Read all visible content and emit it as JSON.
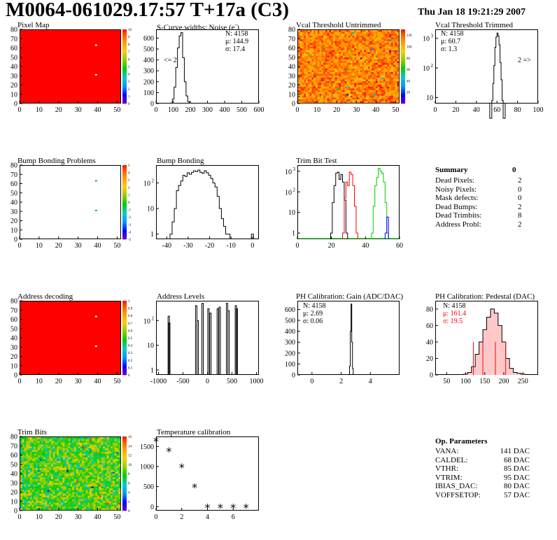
{
  "header": {
    "title": "M0064-061029.17:57 T+17a (C3)",
    "date": "Thu Jan 18 19:21:29 2007"
  },
  "colors": {
    "accent_red": "#ff0000",
    "trim_green": "#00cc00",
    "trim_blue": "#0000ff",
    "pedestal_fill": "#ffc8c8"
  },
  "pixel_map": {
    "title": "Pixel Map",
    "x_ticks": [
      "0",
      "10",
      "20",
      "30",
      "40",
      "50"
    ],
    "y_ticks": [
      "0",
      "10",
      "20",
      "30",
      "40",
      "50",
      "60",
      "70",
      "80"
    ],
    "palette_ticks": [
      "0",
      "1",
      "2",
      "3",
      "4",
      "5",
      "6",
      "7",
      "8",
      "9",
      "10"
    ]
  },
  "scurve": {
    "title": "S-Curve widths: Noise (e",
    "title_sup": "-",
    "title_tail": ")",
    "stats": [
      "N: 4158",
      "μ: 144.9",
      "σ: 17.4"
    ],
    "underflow": "<= 2",
    "x_ticks": [
      "0",
      "100",
      "200",
      "300",
      "400",
      "500",
      "600"
    ],
    "y_ticks": [
      "0",
      "100",
      "200",
      "300",
      "400",
      "500",
      "600"
    ]
  },
  "vcal_untrimmed": {
    "title": "Vcal Threshold Untrimmed",
    "x_ticks": [
      "0",
      "10",
      "20",
      "30",
      "40",
      "50"
    ],
    "y_ticks": [
      "0",
      "10",
      "20",
      "30",
      "40",
      "50",
      "60",
      "70",
      "80"
    ],
    "palette_ticks": [
      "20",
      "40",
      "60",
      "80",
      "100",
      "120"
    ]
  },
  "vcal_trimmed": {
    "title": "Vcal Threshold Trimmed",
    "stats": [
      "N: 4158",
      "μ: 60.7",
      "σ:  1.3"
    ],
    "overflow": "2 =>",
    "x_ticks": [
      "0",
      "20",
      "40",
      "60",
      "80",
      "100"
    ],
    "y_ticks": [
      "10",
      "10",
      "10"
    ],
    "y_exps": [
      "",
      "2",
      "3"
    ]
  },
  "bump_problems": {
    "title": "Bump Bonding Problems",
    "x_ticks": [
      "0",
      "10",
      "20",
      "30",
      "40",
      "50"
    ],
    "y_ticks": [
      "0",
      "10",
      "20",
      "30",
      "40",
      "50",
      "60",
      "70",
      "80"
    ],
    "palette_ticks": [
      "-5",
      "-4",
      "-3",
      "-2",
      "-1",
      "0",
      "1",
      "2",
      "3",
      "4",
      "5"
    ]
  },
  "bump_bonding": {
    "title": "Bump Bonding",
    "x_ticks": [
      "-40",
      "-30",
      "-20",
      "-10",
      "0"
    ],
    "y_ticks": [
      "1",
      "10",
      "10"
    ],
    "y_exps": [
      "",
      "",
      "2"
    ]
  },
  "trim_bit_test": {
    "title": "Trim Bit Test",
    "x_ticks": [
      "0",
      "20",
      "40",
      "60"
    ],
    "y_ticks": [
      "1",
      "10",
      "10",
      "10"
    ],
    "y_exps": [
      "",
      "",
      "2",
      "3"
    ]
  },
  "summary": {
    "title": "Summary",
    "total": "0",
    "rows": [
      {
        "label": "Dead Pixels:",
        "value": "2"
      },
      {
        "label": "Noisy Pixels:",
        "value": "0"
      },
      {
        "label": "Mask defects:",
        "value": "0"
      },
      {
        "label": "Dead Bumps:",
        "value": "2"
      },
      {
        "label": "Dead Trimbits:",
        "value": "8"
      },
      {
        "label": "Address Probl:",
        "value": "2"
      }
    ]
  },
  "address_decoding": {
    "title": "Address decoding",
    "x_ticks": [
      "0",
      "10",
      "20",
      "30",
      "40",
      "50"
    ],
    "y_ticks": [
      "0",
      "10",
      "20",
      "30",
      "40",
      "50",
      "60",
      "70",
      "80"
    ],
    "palette_ticks": [
      "0",
      "0.1",
      "0.2",
      "0.3",
      "0.4",
      "0.5",
      "0.6",
      "0.7",
      "0.8",
      "0.9",
      "1"
    ]
  },
  "address_levels": {
    "title": "Address Levels",
    "x_ticks": [
      "-1000",
      "-500",
      "0",
      "500",
      "1000"
    ],
    "y_ticks": [
      "1",
      "10",
      "10"
    ],
    "y_exps": [
      "",
      "",
      "2"
    ]
  },
  "ph_gain": {
    "title": "PH Calibration: Gain (ADC/DAC)",
    "stats": [
      "N: 4158",
      "μ: 2.69",
      "σ: 0.06"
    ],
    "x_ticks": [
      "0",
      "2",
      "4"
    ],
    "y_ticks": [
      "0",
      "100",
      "200",
      "300",
      "400",
      "500",
      "600"
    ]
  },
  "ph_pedestal": {
    "title": "PH Calibration: Pedestal (DAC)",
    "stats": [
      "N: 4158",
      "μ: 161.4",
      "σ: 19.5"
    ],
    "x_ticks": [
      "50",
      "100",
      "150",
      "200",
      "250"
    ],
    "y_ticks": [
      "0",
      "20",
      "40",
      "60",
      "80"
    ]
  },
  "trim_bits": {
    "title": "Trim Bits",
    "x_ticks": [
      "0",
      "10",
      "20",
      "30",
      "40",
      "50"
    ],
    "y_ticks": [
      "0",
      "10",
      "20",
      "30",
      "40",
      "50",
      "60",
      "70",
      "80"
    ],
    "palette_ticks": [
      "0",
      "2",
      "4",
      "6",
      "8",
      "10",
      "12",
      "14",
      "16"
    ]
  },
  "temperature": {
    "title": "Temperature calibration",
    "x_ticks": [
      "0",
      "2",
      "4",
      "6"
    ],
    "y_ticks": [
      "0",
      "500",
      "1000",
      "1500"
    ]
  },
  "op_params": {
    "title": "Op. Parameters",
    "rows": [
      {
        "label": "VANA:",
        "value": "141 DAC"
      },
      {
        "label": "CALDEL:",
        "value": "68 DAC"
      },
      {
        "label": "VTHR:",
        "value": "85 DAC"
      },
      {
        "label": "VTRIM:",
        "value": "95 DAC"
      },
      {
        "label": "IBIAS_DAC:",
        "value": "80 DAC"
      },
      {
        "label": "VOFFSETOP:",
        "value": "57 DAC"
      }
    ]
  },
  "chart_data": [
    {
      "type": "heatmap",
      "title": "Pixel Map",
      "x_range": [
        0,
        52
      ],
      "y_range": [
        0,
        80
      ],
      "z_range": [
        0,
        10
      ],
      "description_values": {
        "uniform_value": 10,
        "dead_pixels": [
          [
            39,
            63
          ],
          [
            39,
            31
          ]
        ]
      }
    },
    {
      "type": "bar",
      "title": "S-Curve widths: Noise (e-)",
      "x_range": [
        0,
        600
      ],
      "ylim": [
        0,
        680
      ],
      "x": [
        90,
        100,
        110,
        120,
        130,
        140,
        150,
        160,
        170,
        180,
        190,
        200
      ],
      "values": [
        5,
        40,
        150,
        330,
        510,
        620,
        650,
        420,
        200,
        70,
        15,
        3
      ]
    },
    {
      "type": "heatmap",
      "title": "Vcal Threshold Untrimmed",
      "x_range": [
        0,
        52
      ],
      "y_range": [
        0,
        80
      ],
      "z_range": [
        0,
        130
      ]
    },
    {
      "type": "bar",
      "title": "Vcal Threshold Trimmed",
      "log_y": true,
      "x_range": [
        0,
        100
      ],
      "x": [
        54,
        56,
        57,
        58,
        59,
        60,
        61,
        62,
        63,
        64,
        65,
        66,
        67
      ],
      "values": [
        2,
        8,
        30,
        120,
        500,
        1100,
        1500,
        1200,
        600,
        150,
        40,
        8,
        2
      ]
    },
    {
      "type": "heatmap",
      "title": "Bump Bonding Problems",
      "x_range": [
        0,
        52
      ],
      "y_range": [
        0,
        80
      ],
      "z_range": [
        -5,
        5
      ],
      "description_values": {
        "dead_bumps": [
          [
            39,
            63
          ],
          [
            39,
            31
          ]
        ]
      }
    },
    {
      "type": "bar",
      "title": "Bump Bonding",
      "log_y": true,
      "x_range": [
        -45,
        3
      ],
      "x": [
        -38,
        -37,
        -36,
        -35,
        -34,
        -33,
        -32,
        -31,
        -30,
        -29,
        -28,
        -27,
        -26,
        -25,
        -24,
        -23,
        -22,
        -21,
        -20,
        -19,
        -18,
        -17,
        -16,
        -15,
        -14,
        -13,
        -12,
        -11,
        0
      ],
      "values": [
        1,
        3,
        10,
        50,
        80,
        120,
        200,
        180,
        250,
        220,
        260,
        300,
        280,
        320,
        260,
        240,
        300,
        250,
        200,
        150,
        100,
        70,
        30,
        10,
        4,
        2,
        1,
        1,
        1
      ]
    },
    {
      "type": "line",
      "title": "Trim Bit Test",
      "log_y": true,
      "x_range": [
        0,
        60
      ],
      "series": [
        {
          "x": [
            20,
            21,
            22,
            23,
            24,
            25,
            26,
            27,
            28,
            29
          ],
          "values": [
            1,
            30,
            200,
            800,
            900,
            400,
            700,
            300,
            40,
            1
          ]
        },
        {
          "x": [
            27,
            28,
            29,
            30,
            31,
            32,
            33,
            34,
            35
          ],
          "values": [
            1,
            50,
            300,
            200,
            900,
            700,
            200,
            20,
            1
          ]
        },
        {
          "x": [
            44,
            45,
            46,
            47,
            48,
            49,
            50,
            51,
            52,
            53
          ],
          "values": [
            1,
            20,
            200,
            500,
            1400,
            1000,
            800,
            300,
            30,
            1
          ]
        },
        {
          "x": [
            52,
            53
          ],
          "values": [
            1,
            6
          ]
        }
      ]
    },
    {
      "type": "heatmap",
      "title": "Address decoding",
      "x_range": [
        0,
        52
      ],
      "y_range": [
        0,
        80
      ],
      "z_range": [
        0,
        1
      ],
      "description_values": {
        "address_problems": [
          [
            39,
            63
          ],
          [
            39,
            31
          ]
        ]
      }
    },
    {
      "type": "bar",
      "title": "Address Levels",
      "log_y": true,
      "x_range": [
        -1050,
        1050
      ],
      "x": [
        -790,
        -780,
        -230,
        -200,
        -100,
        20,
        60,
        210,
        250,
        400,
        430,
        580,
        600
      ],
      "values": [
        150,
        80,
        400,
        100,
        500,
        300,
        200,
        300,
        350,
        500,
        250,
        400,
        300
      ]
    },
    {
      "type": "bar",
      "title": "PH Calibration: Gain (ADC/DAC)",
      "x_range": [
        -1,
        6
      ],
      "ylim": [
        0,
        680
      ],
      "x": [
        2.55,
        2.6,
        2.65,
        2.7,
        2.75,
        2.8,
        2.85
      ],
      "values": [
        5,
        80,
        400,
        650,
        300,
        60,
        5
      ]
    },
    {
      "type": "bar",
      "title": "PH Calibration: Pedestal (DAC)",
      "x_range": [
        20,
        290
      ],
      "ylim": [
        0,
        90
      ],
      "x": [
        100,
        110,
        120,
        130,
        140,
        150,
        160,
        170,
        180,
        190,
        200,
        210,
        220,
        230,
        240,
        250
      ],
      "values": [
        1,
        3,
        10,
        25,
        40,
        55,
        70,
        80,
        75,
        60,
        40,
        20,
        8,
        3,
        2,
        1
      ],
      "markers": [
        120,
        145,
        178,
        205
      ]
    },
    {
      "type": "heatmap",
      "title": "Trim Bits",
      "x_range": [
        0,
        52
      ],
      "y_range": [
        0,
        80
      ],
      "z_range": [
        0,
        16
      ]
    },
    {
      "type": "scatter",
      "title": "Temperature calibration",
      "x_range": [
        0,
        8
      ],
      "ylim": [
        -100,
        1750
      ],
      "x": [
        0,
        1,
        2,
        3,
        4,
        5,
        6,
        7
      ],
      "values": [
        1650,
        1400,
        1000,
        500,
        0,
        0,
        0,
        0
      ]
    }
  ]
}
